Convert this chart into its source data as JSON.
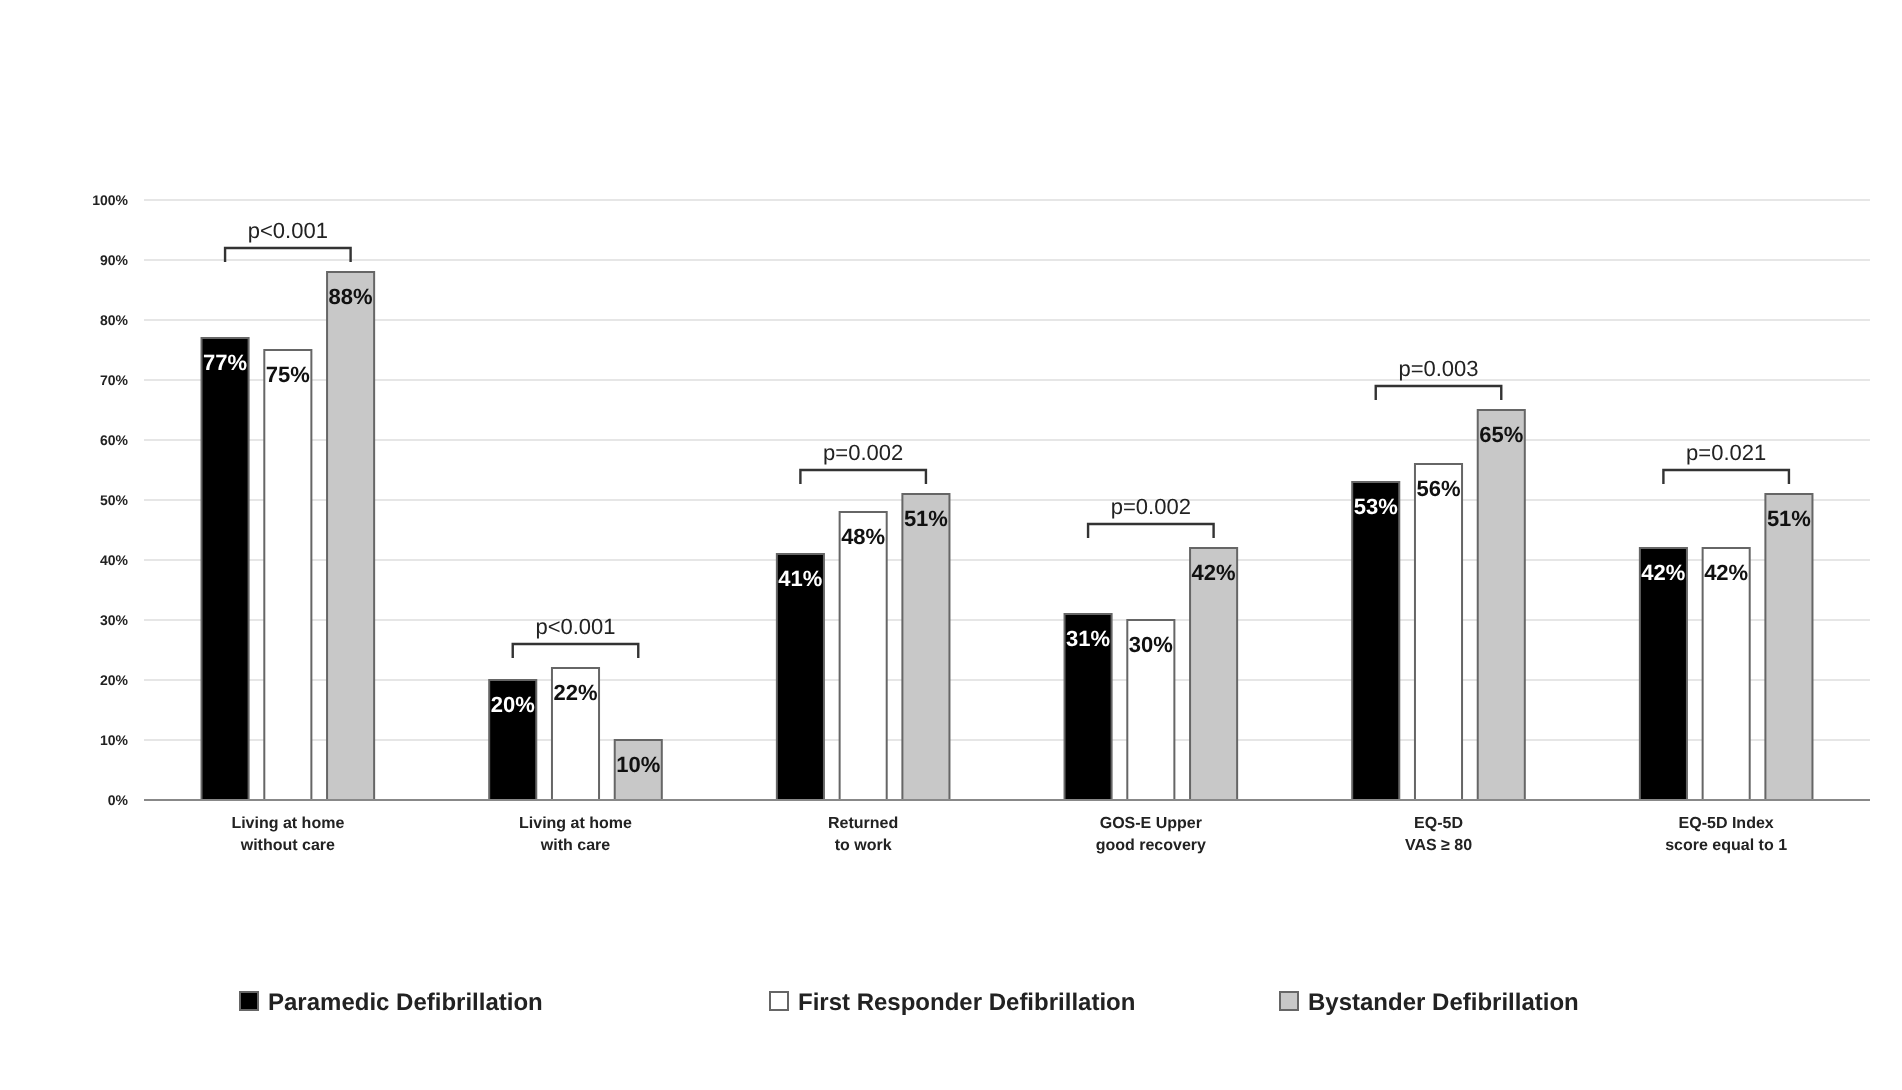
{
  "chart_data": {
    "type": "bar",
    "categories": [
      "Living at home\nwithout care",
      "Living at home\nwith care",
      "Returned\nto work",
      "GOS-E Upper\ngood recovery",
      "EQ-5D\nVAS ≥ 80",
      "EQ-5D Index\nscore equal to 1"
    ],
    "series": [
      {
        "name": "Paramedic Defibrillation",
        "color": "#000000",
        "values": [
          77,
          20,
          41,
          31,
          53,
          42
        ],
        "value_labels": [
          "77%",
          "20%",
          "41%",
          "31%",
          "53%",
          "42%"
        ]
      },
      {
        "name": "First Responder Defibrillation",
        "color": "#ffffff",
        "values": [
          75,
          22,
          48,
          30,
          56,
          42
        ],
        "value_labels": [
          "75%",
          "22%",
          "48%",
          "30%",
          "56%",
          "42%"
        ]
      },
      {
        "name": "Bystander Defibrillation",
        "color": "#c8c8c8",
        "values": [
          88,
          10,
          51,
          42,
          65,
          51
        ],
        "value_labels": [
          "88%",
          "10%",
          "51%",
          "42%",
          "65%",
          "51%"
        ]
      }
    ],
    "ylim": [
      0,
      100
    ],
    "yticks": [
      {
        "value": 0,
        "label": "0%"
      },
      {
        "value": 10,
        "label": "10%"
      },
      {
        "value": 20,
        "label": "20%"
      },
      {
        "value": 30,
        "label": "30%"
      },
      {
        "value": 40,
        "label": "40%"
      },
      {
        "value": 50,
        "label": "50%"
      },
      {
        "value": 60,
        "label": "60%"
      },
      {
        "value": 70,
        "label": "70%"
      },
      {
        "value": 80,
        "label": "80%"
      },
      {
        "value": 90,
        "label": "90%"
      },
      {
        "value": 100,
        "label": "100%"
      }
    ],
    "grid": "y",
    "legend": "bottom",
    "annotations": [
      "p<0.001",
      "p<0.001",
      "p=0.002",
      "p=0.002",
      "p=0.003",
      "p=0.021"
    ]
  }
}
